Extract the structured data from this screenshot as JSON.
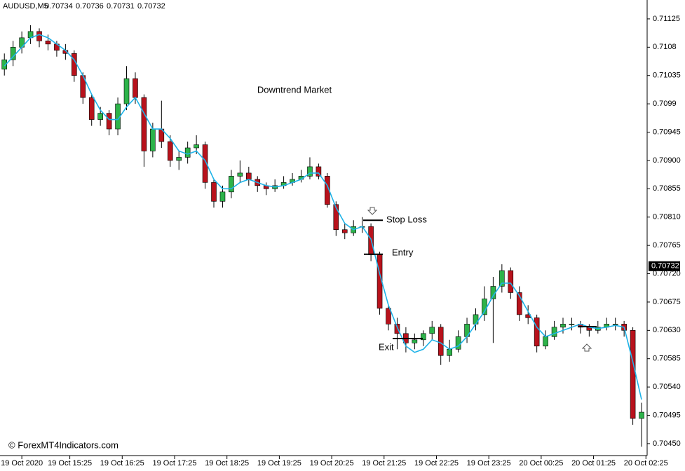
{
  "chart_data": {
    "type": "candlestick",
    "symbol": "AUDUSD,M5",
    "header_values": [
      0.70734,
      0.70736,
      0.70731,
      0.70732
    ],
    "annotation": "Downtrend Market",
    "watermark": "© ForexMT4Indicators.com",
    "up_color": "#2db34a",
    "down_color": "#b8121c",
    "open": [
      0.71045,
      0.7106,
      0.7108,
      0.71095,
      0.71105,
      0.7109,
      0.71085,
      0.71075,
      0.7107,
      0.71035,
      0.71,
      0.70965,
      0.70975,
      0.7095,
      0.7099,
      0.7103,
      0.71,
      0.70915,
      0.7095,
      0.7093,
      0.709,
      0.70905,
      0.7092,
      0.70925,
      0.70865,
      0.70835,
      0.7085,
      0.70875,
      0.7088,
      0.7087,
      0.7086,
      0.70855,
      0.7086,
      0.70865,
      0.7087,
      0.70875,
      0.7089,
      0.70875,
      0.7083,
      0.7079,
      0.70785,
      0.70795,
      0.70795,
      0.7075,
      0.70665,
      0.7064,
      0.70625,
      0.7061,
      0.70615,
      0.70625,
      0.70635,
      0.7059,
      0.706,
      0.7062,
      0.7064,
      0.70655,
      0.7068,
      0.707,
      0.70725,
      0.7069,
      0.70655,
      0.7065,
      0.70605,
      0.7062,
      0.70635,
      0.7064,
      0.7064,
      0.70635,
      0.7063,
      0.70635,
      0.7064,
      0.7064,
      0.7063,
      0.7049
    ],
    "high": [
      0.7107,
      0.7109,
      0.71105,
      0.71115,
      0.7111,
      0.711,
      0.7109,
      0.71085,
      0.71075,
      0.7104,
      0.71005,
      0.70985,
      0.7098,
      0.71,
      0.7105,
      0.7104,
      0.71005,
      0.7096,
      0.70995,
      0.7094,
      0.70915,
      0.7093,
      0.7094,
      0.7093,
      0.7087,
      0.7086,
      0.70885,
      0.709,
      0.7089,
      0.70875,
      0.70865,
      0.7087,
      0.70875,
      0.7088,
      0.70885,
      0.70905,
      0.70895,
      0.7088,
      0.70835,
      0.708,
      0.70805,
      0.7081,
      0.708,
      0.70755,
      0.7067,
      0.7065,
      0.70635,
      0.70625,
      0.7063,
      0.70645,
      0.7064,
      0.70615,
      0.7063,
      0.7065,
      0.70665,
      0.707,
      0.70715,
      0.70735,
      0.7073,
      0.707,
      0.7067,
      0.70655,
      0.7063,
      0.70645,
      0.7065,
      0.7065,
      0.70645,
      0.7064,
      0.70645,
      0.7065,
      0.7065,
      0.70645,
      0.70635,
      0.70515
    ],
    "low": [
      0.71035,
      0.7105,
      0.7107,
      0.71085,
      0.7108,
      0.71075,
      0.71065,
      0.7106,
      0.71025,
      0.7099,
      0.70955,
      0.70955,
      0.7094,
      0.7094,
      0.7098,
      0.7099,
      0.7089,
      0.70905,
      0.7092,
      0.7089,
      0.70885,
      0.70895,
      0.7091,
      0.70855,
      0.70825,
      0.70825,
      0.7084,
      0.70865,
      0.7086,
      0.7085,
      0.70845,
      0.7085,
      0.70855,
      0.7086,
      0.70865,
      0.7087,
      0.7087,
      0.70825,
      0.7078,
      0.70775,
      0.7078,
      0.70785,
      0.7074,
      0.70655,
      0.7063,
      0.706,
      0.70595,
      0.706,
      0.70605,
      0.70615,
      0.70575,
      0.7058,
      0.70595,
      0.7061,
      0.7063,
      0.70645,
      0.7061,
      0.7069,
      0.7068,
      0.70645,
      0.7064,
      0.70595,
      0.706,
      0.70615,
      0.70625,
      0.7063,
      0.70625,
      0.7062,
      0.70625,
      0.7063,
      0.7063,
      0.7062,
      0.7048,
      0.70445
    ],
    "close": [
      0.7106,
      0.7108,
      0.71095,
      0.71105,
      0.7109,
      0.71085,
      0.71075,
      0.7107,
      0.71035,
      0.71,
      0.70965,
      0.70975,
      0.7095,
      0.7099,
      0.7103,
      0.71,
      0.70915,
      0.7095,
      0.7093,
      0.709,
      0.70905,
      0.7092,
      0.70925,
      0.70865,
      0.70835,
      0.7085,
      0.70875,
      0.7088,
      0.7087,
      0.7086,
      0.70855,
      0.7086,
      0.70865,
      0.7087,
      0.70875,
      0.7089,
      0.70875,
      0.7083,
      0.7079,
      0.70785,
      0.70795,
      0.70795,
      0.7075,
      0.70665,
      0.7064,
      0.70625,
      0.7061,
      0.70615,
      0.70625,
      0.70635,
      0.7059,
      0.706,
      0.7062,
      0.7064,
      0.70655,
      0.7068,
      0.707,
      0.70725,
      0.7069,
      0.70655,
      0.7065,
      0.70605,
      0.7062,
      0.70635,
      0.7064,
      0.7064,
      0.70635,
      0.7063,
      0.70635,
      0.7064,
      0.7064,
      0.7063,
      0.7049,
      0.705
    ],
    "ma": {
      "color": "#1eb3e8",
      "values": [
        0.7105,
        0.71065,
        0.7108,
        0.71095,
        0.711,
        0.71095,
        0.71085,
        0.71075,
        0.7106,
        0.71035,
        0.71005,
        0.7098,
        0.70965,
        0.70965,
        0.70985,
        0.71,
        0.70975,
        0.7095,
        0.7095,
        0.70935,
        0.70915,
        0.7091,
        0.70915,
        0.709,
        0.7087,
        0.70855,
        0.70855,
        0.70865,
        0.7087,
        0.70865,
        0.7086,
        0.70858,
        0.7086,
        0.70865,
        0.7087,
        0.7088,
        0.7088,
        0.7086,
        0.70825,
        0.708,
        0.7079,
        0.70795,
        0.70775,
        0.7072,
        0.7067,
        0.70635,
        0.70605,
        0.70595,
        0.706,
        0.70615,
        0.7061,
        0.706,
        0.70605,
        0.7062,
        0.7064,
        0.7066,
        0.70685,
        0.70705,
        0.70705,
        0.70685,
        0.7066,
        0.70635,
        0.7062,
        0.70625,
        0.7063,
        0.70635,
        0.7064,
        0.70635,
        0.70633,
        0.70635,
        0.70638,
        0.70635,
        0.7058,
        0.7052
      ]
    },
    "levels": [
      {
        "label": "Stop Loss",
        "price": 0.70805
      },
      {
        "label": "Entry",
        "price": 0.70751
      },
      {
        "label": "Exit",
        "price": 0.70617
      },
      {
        "price": 0.70636
      }
    ],
    "current_price": 0.70732,
    "xlim": [
      -0.5,
      73.8
    ],
    "xticks": [
      {
        "value": 2,
        "label": "19 Oct 2020"
      },
      {
        "value": 7.5,
        "label": "19 Oct 15:25"
      },
      {
        "value": 13.5,
        "label": "19 Oct 16:25"
      },
      {
        "value": 19.5,
        "label": "19 Oct 17:25"
      },
      {
        "value": 25.5,
        "label": "19 Oct 18:25"
      },
      {
        "value": 31.5,
        "label": "19 Oct 19:25"
      },
      {
        "value": 37.5,
        "label": "19 Oct 20:25"
      },
      {
        "value": 43.5,
        "label": "19 Oct 21:25"
      },
      {
        "value": 49.5,
        "label": "19 Oct 22:25"
      },
      {
        "value": 55.5,
        "label": "19 Oct 23:25"
      },
      {
        "value": 61.5,
        "label": "20 Oct 00:25"
      },
      {
        "value": 67.5,
        "label": "20 Oct 01:25"
      },
      {
        "value": 73.5,
        "label": "20 Oct 02:25"
      }
    ],
    "ylim": [
      0.70431,
      0.71155
    ],
    "yticks": [
      0.71125,
      0.7108,
      0.71035,
      0.7099,
      0.70945,
      {
        "value": 0.709,
        "label": "0.70900"
      },
      0.70855,
      {
        "value": 0.7081,
        "label": "0.70810"
      },
      0.70765,
      {
        "value": 0.7072,
        "label": "0.70720"
      },
      0.70675,
      {
        "value": 0.7063,
        "label": "0.70630"
      },
      0.70585,
      {
        "value": 0.7054,
        "label": "0.70540"
      },
      0.70495,
      {
        "value": 0.7045,
        "label": "0.70450"
      }
    ]
  }
}
